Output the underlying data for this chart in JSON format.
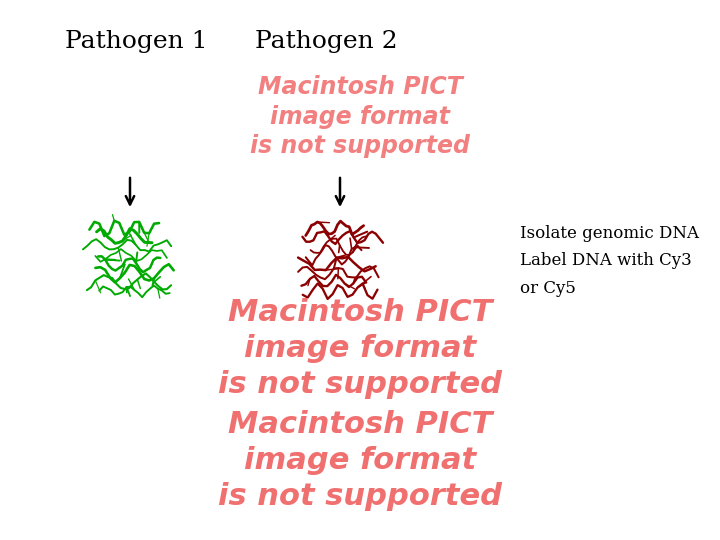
{
  "title1": "Pathogen 1",
  "title2": "Pathogen 2",
  "bg_color": "#ffffff",
  "pict_color_top": "#f28080",
  "pict_color_mid": "#f07070",
  "pict_color_bot": "#f07070",
  "pict_text": "Macintosh PICT\nimage format\nis not supported",
  "annotation_text": "Isolate genomic DNA\nLabel DNA with Cy3\nor Cy5",
  "green_color": "#00aa00",
  "red_color": "#8b0000"
}
